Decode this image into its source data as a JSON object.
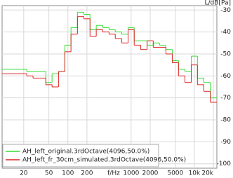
{
  "chart_data": {
    "type": "step",
    "xlabel": "f/Hz",
    "ylabel": "L/dB[Pa]",
    "xscale": "log",
    "grid": true,
    "legend": "lower left",
    "xlim": [
      9.1,
      22700
    ],
    "ylim": [
      -102,
      -28
    ],
    "xticks": [
      20,
      50,
      100,
      200,
      1000,
      2000,
      5000,
      {
        "value": 10000,
        "label": "10k"
      },
      {
        "value": 20000,
        "label": "20k"
      }
    ],
    "yticks": [
      -30,
      -40,
      -50,
      -60,
      -70,
      -80,
      -90,
      -100
    ],
    "x": [
      12.5,
      16,
      20,
      25,
      31.5,
      40,
      50,
      63,
      80,
      100,
      125,
      160,
      200,
      250,
      315,
      400,
      500,
      630,
      800,
      1000,
      1250,
      1600,
      2000,
      2500,
      3150,
      4000,
      5000,
      6300,
      8000,
      10000,
      12500,
      16000,
      20000
    ],
    "series": [
      {
        "name": "AH_left_original.3rdOctave(4096,50.0%)",
        "color": "#33dd33",
        "values": [
          -57,
          -57,
          -57,
          -58,
          -58,
          -58,
          -63,
          -59,
          -58,
          -46,
          -38,
          -31,
          -32,
          -39,
          -37,
          -38,
          -39,
          -40,
          -41,
          -38,
          -44,
          -44,
          -46,
          -45,
          -46,
          -48,
          -53,
          -57,
          -58,
          -51,
          -61,
          -63,
          -70
        ]
      },
      {
        "name": "AH_left_fr_30cm_simulated.3rdOctave(4096,50.0%)",
        "color": "#dd2222",
        "values": [
          -59,
          -59,
          -59,
          -60,
          -61,
          -61,
          -64,
          -65,
          -58,
          -49,
          -41,
          -33,
          -34,
          -42,
          -39,
          -40,
          -41,
          -43,
          -45,
          -39,
          -46,
          -48,
          -44,
          -47,
          -47,
          -50,
          -54,
          -60,
          -63,
          -55,
          -64,
          -67,
          -72
        ]
      }
    ]
  }
}
